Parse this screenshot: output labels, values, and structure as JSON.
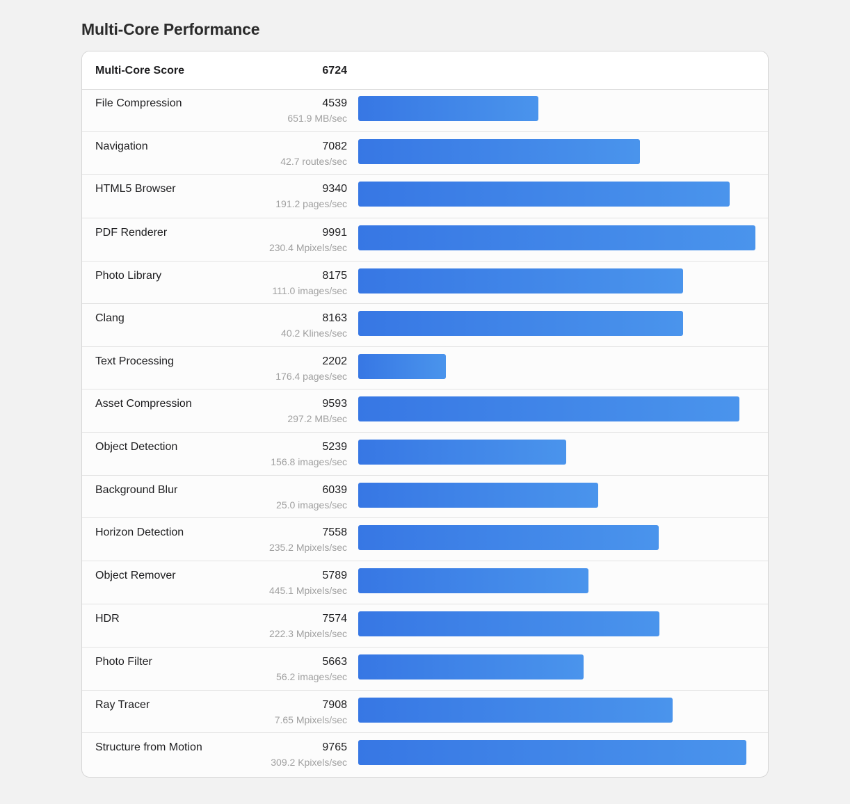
{
  "page": {
    "title": "Multi-Core Performance"
  },
  "header": {
    "label": "Multi-Core Score",
    "score": "6724"
  },
  "colors": {
    "bar_start": "#3777e4",
    "bar_end": "#4a94ec",
    "background": "#f2f2f2"
  },
  "chart_data": {
    "type": "bar",
    "orientation": "horizontal",
    "title": "Multi-Core Performance",
    "categories": [
      "File Compression",
      "Navigation",
      "HTML5 Browser",
      "PDF Renderer",
      "Photo Library",
      "Clang",
      "Text Processing",
      "Asset Compression",
      "Object Detection",
      "Background Blur",
      "Horizon Detection",
      "Object Remover",
      "HDR",
      "Photo Filter",
      "Ray Tracer",
      "Structure from Motion"
    ],
    "values": [
      4539,
      7082,
      9340,
      9991,
      8175,
      8163,
      2202,
      9593,
      5239,
      6039,
      7558,
      5789,
      7574,
      5663,
      7908,
      9765
    ],
    "rates": [
      "651.9 MB/sec",
      "42.7 routes/sec",
      "191.2 pages/sec",
      "230.4 Mpixels/sec",
      "111.0 images/sec",
      "40.2 Klines/sec",
      "176.4 pages/sec",
      "297.2 MB/sec",
      "156.8 images/sec",
      "25.0 images/sec",
      "235.2 Mpixels/sec",
      "445.1 Mpixels/sec",
      "222.3 Mpixels/sec",
      "56.2 images/sec",
      "7.65 Mpixels/sec",
      "309.2 Kpixels/sec"
    ],
    "xlim": [
      0,
      9991
    ],
    "grid": false,
    "legend": "none"
  }
}
